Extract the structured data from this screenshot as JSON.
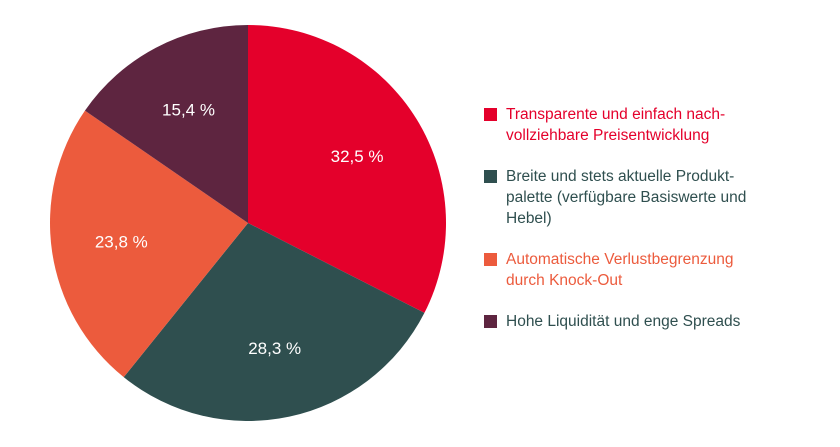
{
  "chart_data": {
    "type": "pie",
    "categories": [
      "Transparente und einfach nach-vollziehbare Preisentwicklung",
      "Breite und stets aktuelle Produkt-palette (verfügbare Basiswerte und Hebel)",
      "Automatische Verlustbegrenzung durch Knock-Out",
      "Hohe Liquidität und enge Spreads"
    ],
    "legend_lines": [
      [
        "Transparente und einfach nach-",
        "vollziehbare Preisentwicklung"
      ],
      [
        "Breite und stets aktuelle Produkt-",
        "palette (verfügbare Basiswerte und",
        "Hebel)"
      ],
      [
        "Automatische Verlustbegrenzung",
        "durch Knock-Out"
      ],
      [
        "Hohe Liquidität und enge Spreads"
      ]
    ],
    "values": [
      32.5,
      28.3,
      23.8,
      15.4
    ],
    "value_labels": [
      "32,5 %",
      "28,3 %",
      "23,8 %",
      "15,4 %"
    ],
    "colors": [
      "#e4002b",
      "#2f4f4f",
      "#ec5b3d",
      "#5e2540"
    ],
    "legend_text_colors": [
      "#e4002b",
      "#2f4f4f",
      "#ec5b3d",
      "#2f4f4f"
    ],
    "start_angle_deg": 0,
    "direction": "clockwise",
    "legend_position": "right"
  }
}
